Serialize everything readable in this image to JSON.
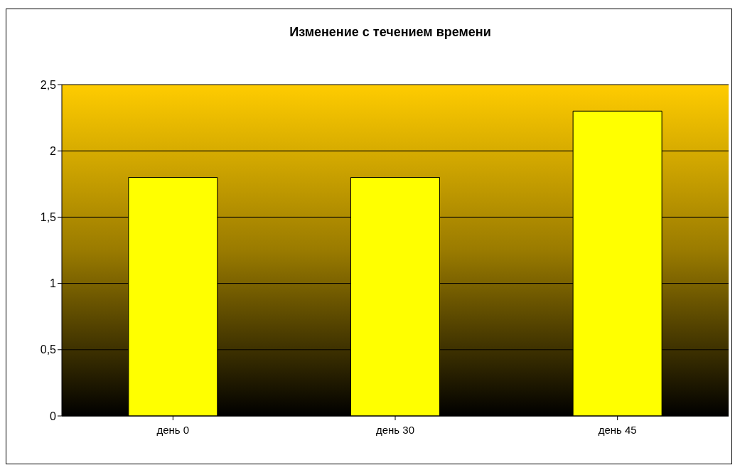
{
  "chart_data": {
    "type": "bar",
    "title": "Изменение с течением времени",
    "categories": [
      "день 0",
      "день 30",
      "день 45"
    ],
    "values": [
      1.8,
      1.8,
      2.3
    ],
    "color": "#ffff00",
    "ylim": [
      0,
      2.5
    ],
    "yticks": [
      {
        "value": 0,
        "label": "0"
      },
      {
        "value": 0.5,
        "label": "0,5"
      },
      {
        "value": 1,
        "label": "1"
      },
      {
        "value": 1.5,
        "label": "1,5"
      },
      {
        "value": 2,
        "label": "2"
      },
      {
        "value": 2.5,
        "label": "2,5"
      }
    ],
    "grid": "y",
    "legend": false
  }
}
